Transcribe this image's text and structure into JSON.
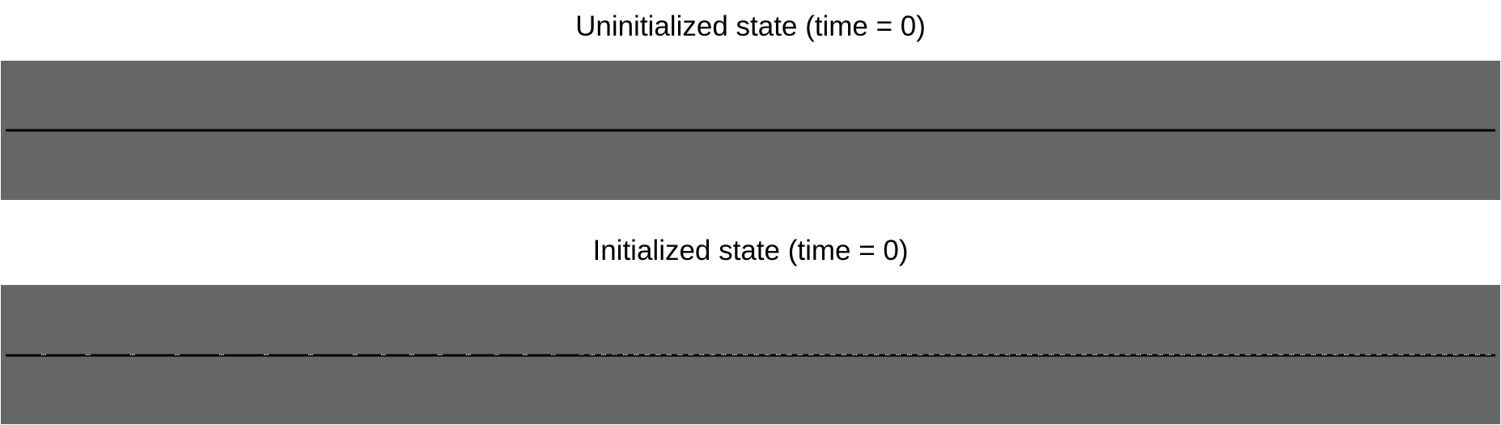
{
  "panels": [
    {
      "title": "Uninitialized state (time = 0)",
      "background": "#666666",
      "line_color": "#000000",
      "markers": false
    },
    {
      "title": "Initialized state (time = 0)",
      "background": "#666666",
      "line_color": "#000000",
      "markers": true,
      "marker_colors": [
        "#ffffff",
        "#f2b8b8",
        "#e08080"
      ]
    }
  ]
}
